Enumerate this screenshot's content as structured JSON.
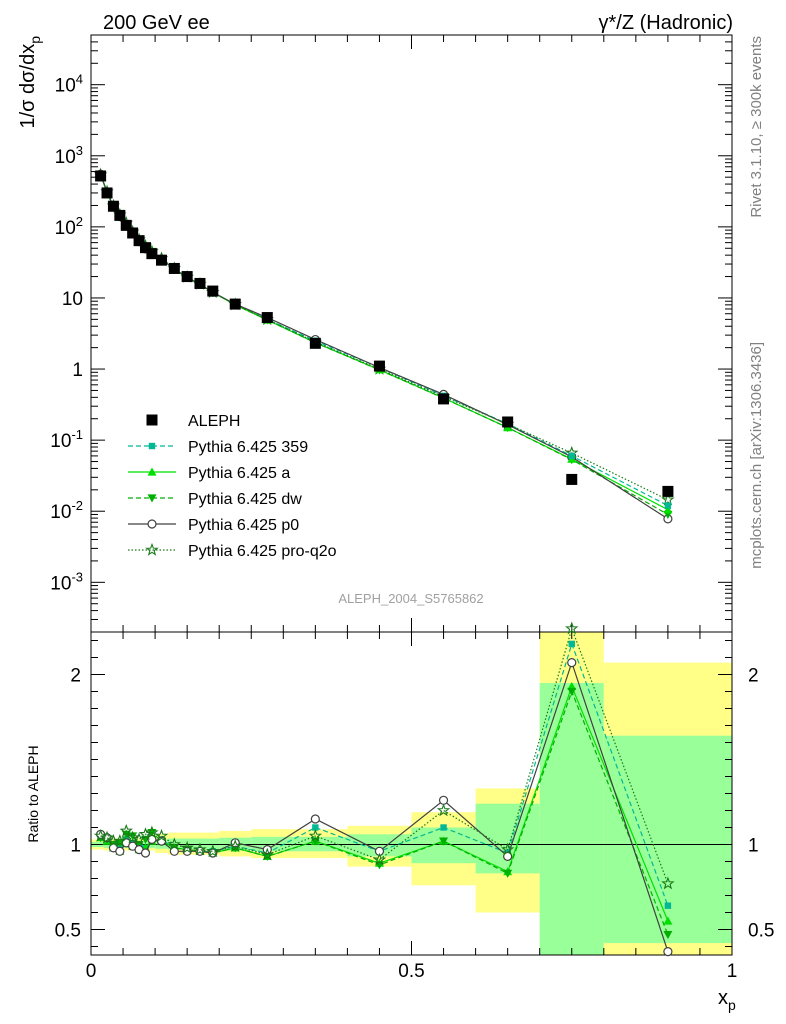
{
  "header": {
    "left_title": "200 GeV ee",
    "right_title": "γ*/Z (Hadronic)",
    "y_label": "1/σ dσ/dx_p",
    "side_label_1": "Rivet 3.1.10, ≥ 300k events",
    "side_label_2": "mcplots.cern.ch [arXiv:1306.3436]",
    "watermark": "ALEPH_2004_S5765862",
    "ratio_y_label": "Ratio to ALEPH",
    "x_label": "x_p"
  },
  "colors": {
    "data": "#000000",
    "p359": "#00b894",
    "a": "#00e000",
    "dw": "#00b000",
    "p0": "#404040",
    "proq2o": "#1a7a1a",
    "band_outer": "#ffff88",
    "band_inner": "#99ff99"
  },
  "chart_data": [
    {
      "type": "scatter",
      "panel": "main",
      "ylog": true,
      "xlim": [
        0,
        1
      ],
      "ylim": [
        0.0002,
        50000
      ],
      "ytick_labels": [
        "10^{-3}",
        "10^{-2}",
        "10^{-1}",
        "1",
        "10",
        "10^2",
        "10^3",
        "10^4"
      ],
      "x": [
        0.015,
        0.025,
        0.035,
        0.045,
        0.055,
        0.065,
        0.075,
        0.085,
        0.095,
        0.11,
        0.13,
        0.15,
        0.17,
        0.19,
        0.225,
        0.275,
        0.35,
        0.45,
        0.55,
        0.65,
        0.75,
        0.9
      ],
      "series": [
        {
          "name": "ALEPH",
          "key": "data",
          "marker": "square",
          "values": [
            520,
            300,
            195,
            145,
            105,
            82,
            64,
            51,
            42,
            34,
            26,
            20,
            16,
            12.5,
            8.2,
            5.3,
            2.3,
            1.1,
            0.38,
            0.18,
            0.028,
            0.019
          ]
        },
        {
          "name": "Pythia 6.425 359",
          "key": "p359",
          "marker": "smallsquare",
          "dash": "5,3",
          "values": [
            545,
            310,
            195,
            143,
            108,
            83,
            63,
            50,
            43,
            35,
            25.5,
            19.5,
            15.5,
            12,
            8.1,
            5.0,
            2.5,
            1.05,
            0.42,
            0.17,
            0.06,
            0.012
          ]
        },
        {
          "name": "Pythia 6.425 a",
          "key": "a",
          "marker": "triangle-up",
          "dash": "",
          "values": [
            540,
            305,
            190,
            140,
            106,
            82,
            62,
            50,
            43,
            35,
            25.5,
            19.5,
            15.5,
            12,
            8.0,
            4.9,
            2.35,
            0.98,
            0.39,
            0.15,
            0.054,
            0.0105
          ]
        },
        {
          "name": "Pythia 6.425 dw",
          "key": "dw",
          "marker": "triangle-down",
          "dash": "5,3",
          "values": [
            542,
            308,
            195,
            146,
            111,
            86,
            64,
            53,
            45,
            35,
            25.5,
            19.5,
            15.5,
            12,
            8.0,
            4.9,
            2.35,
            0.97,
            0.39,
            0.15,
            0.053,
            0.009
          ]
        },
        {
          "name": "Pythia 6.425 p0",
          "key": "p0",
          "marker": "circle",
          "dash": "",
          "values": [
            550,
            310,
            190,
            140,
            106,
            81,
            62,
            49,
            43,
            35,
            25.5,
            19.5,
            15.5,
            12,
            8.2,
            5.3,
            2.6,
            1.05,
            0.44,
            0.165,
            0.058,
            0.0078
          ]
        },
        {
          "name": "Pythia 6.425 pro-q2o",
          "key": "proq2o",
          "marker": "star",
          "dash": "1.5,2",
          "values": [
            543,
            312,
            198,
            148,
            113,
            85,
            66,
            54,
            45,
            36,
            26,
            19.7,
            15.7,
            12,
            8.1,
            5.0,
            2.4,
            1.0,
            0.41,
            0.168,
            0.066,
            0.0145
          ]
        }
      ],
      "legend_position": "lower-left"
    },
    {
      "type": "scatter",
      "panel": "ratio",
      "xlim": [
        0,
        1
      ],
      "ylim": [
        0.35,
        2.25
      ],
      "ytick_labels": [
        "0.5",
        "1",
        "2"
      ],
      "xtick_labels": [
        "0",
        "0.5",
        "1"
      ],
      "bands": [
        {
          "x0": 0.0,
          "x1": 0.02,
          "outer": [
            0.97,
            1.03
          ],
          "inner": [
            0.985,
            1.015
          ]
        },
        {
          "x0": 0.02,
          "x1": 0.1,
          "outer": [
            0.965,
            1.035
          ],
          "inner": [
            0.98,
            1.02
          ]
        },
        {
          "x0": 0.1,
          "x1": 0.12,
          "outer": [
            0.95,
            1.06
          ],
          "inner": [
            0.975,
            1.03
          ]
        },
        {
          "x0": 0.12,
          "x1": 0.2,
          "outer": [
            0.94,
            1.07
          ],
          "inner": [
            0.97,
            1.035
          ]
        },
        {
          "x0": 0.2,
          "x1": 0.25,
          "outer": [
            0.93,
            1.08
          ],
          "inner": [
            0.965,
            1.04
          ]
        },
        {
          "x0": 0.25,
          "x1": 0.4,
          "outer": [
            0.92,
            1.09
          ],
          "inner": [
            0.96,
            1.045
          ]
        },
        {
          "x0": 0.4,
          "x1": 0.5,
          "outer": [
            0.87,
            1.11
          ],
          "inner": [
            0.93,
            1.06
          ]
        },
        {
          "x0": 0.5,
          "x1": 0.6,
          "outer": [
            0.76,
            1.19
          ],
          "inner": [
            0.89,
            1.1
          ]
        },
        {
          "x0": 0.6,
          "x1": 0.7,
          "outer": [
            0.6,
            1.33
          ],
          "inner": [
            0.83,
            1.24
          ]
        },
        {
          "x0": 0.7,
          "x1": 0.8,
          "outer": [
            0.3,
            2.45
          ],
          "inner": [
            0.3,
            1.95
          ]
        },
        {
          "x0": 0.8,
          "x1": 1.0,
          "outer": [
            0.35,
            2.07
          ],
          "inner": [
            0.42,
            1.64
          ]
        }
      ],
      "x": [
        0.015,
        0.025,
        0.035,
        0.045,
        0.055,
        0.065,
        0.075,
        0.085,
        0.095,
        0.11,
        0.13,
        0.15,
        0.17,
        0.19,
        0.225,
        0.275,
        0.35,
        0.45,
        0.55,
        0.65,
        0.75,
        0.9
      ],
      "series": [
        {
          "name": "Pythia 6.425 359",
          "key": "p359",
          "marker": "smallsquare",
          "dash": "5,3",
          "values": [
            1.05,
            1.03,
            1.0,
            0.98,
            1.03,
            1.01,
            0.98,
            0.98,
            1.03,
            1.03,
            0.98,
            0.97,
            0.96,
            0.96,
            0.99,
            0.95,
            1.1,
            0.96,
            1.1,
            0.95,
            2.18,
            0.64
          ]
        },
        {
          "name": "Pythia 6.425 a",
          "key": "a",
          "marker": "triangle-up",
          "dash": "",
          "values": [
            1.04,
            1.02,
            0.98,
            0.96,
            1.01,
            0.99,
            0.97,
            0.98,
            1.02,
            1.02,
            0.98,
            0.97,
            0.96,
            0.95,
            0.98,
            0.93,
            1.02,
            0.89,
            1.02,
            0.84,
            1.93,
            0.55
          ]
        },
        {
          "name": "Pythia 6.425 dw",
          "key": "dw",
          "marker": "triangle-down",
          "dash": "5,3",
          "values": [
            1.04,
            1.03,
            1.0,
            1.01,
            1.06,
            1.05,
            1.0,
            1.03,
            1.07,
            1.02,
            0.98,
            0.97,
            0.96,
            0.95,
            0.98,
            0.93,
            1.02,
            0.88,
            1.02,
            0.83,
            1.9,
            0.47
          ]
        },
        {
          "name": "Pythia 6.425 p0",
          "key": "p0",
          "marker": "circle",
          "dash": "",
          "values": [
            1.06,
            1.04,
            0.98,
            0.96,
            1.01,
            0.99,
            0.97,
            0.95,
            1.03,
            1.02,
            0.96,
            0.96,
            0.96,
            0.95,
            1.01,
            0.97,
            1.15,
            0.96,
            1.26,
            0.93,
            2.07,
            0.37
          ]
        },
        {
          "name": "Pythia 6.425 pro-q2o",
          "key": "proq2o",
          "marker": "star",
          "dash": "1.5,2",
          "values": [
            1.05,
            1.04,
            1.02,
            1.02,
            1.08,
            1.04,
            1.03,
            1.06,
            1.07,
            1.05,
            1.0,
            0.98,
            0.97,
            0.96,
            0.99,
            0.94,
            1.05,
            0.91,
            1.2,
            0.97,
            2.27,
            0.77
          ]
        }
      ]
    }
  ]
}
